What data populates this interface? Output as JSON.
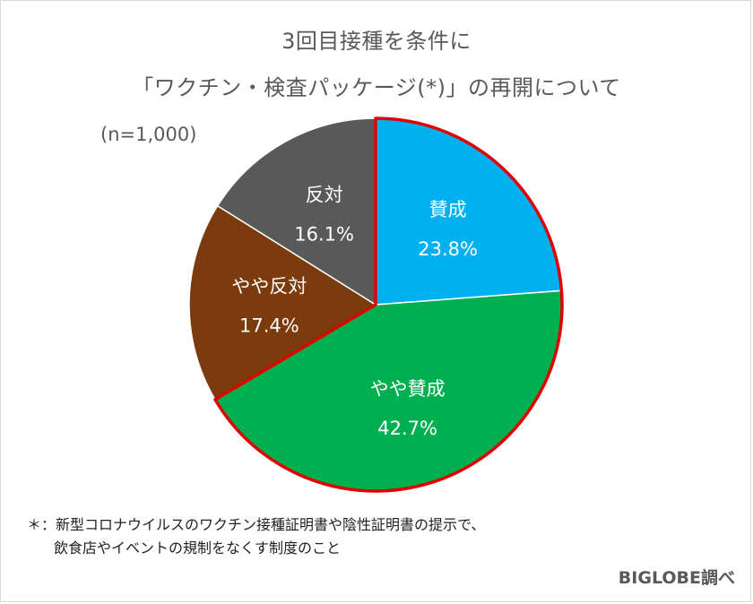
{
  "header": {
    "title_line1": "3回目接種を条件に",
    "title_line2": "「ワクチン・検査パッケージ(*)」の再開について",
    "sample_size": "(n=1,000)"
  },
  "chart_data": {
    "type": "pie",
    "title": "3回目接種を条件に「ワクチン・検査パッケージ(*)」の再開について",
    "unit": "%",
    "slices": [
      {
        "label": "賛成",
        "value": 23.8,
        "value_text": "23.8%",
        "color": "#00b0f0",
        "label_color": "#ffffff"
      },
      {
        "label": "やや賛成",
        "value": 42.7,
        "value_text": "42.7%",
        "color": "#00b050",
        "label_color": "#ffffff"
      },
      {
        "label": "やや反対",
        "value": 17.4,
        "value_text": "17.4%",
        "color": "#7b3b0c",
        "label_color": "#ffffff"
      },
      {
        "label": "反対",
        "value": 16.1,
        "value_text": "16.1%",
        "color": "#595959",
        "label_color": "#ffffff"
      }
    ],
    "start_angle_deg": 0,
    "direction": "clockwise",
    "highlighted_group": [
      "賛成",
      "やや賛成"
    ],
    "highlight_color": "#e00000",
    "slice_border_color": "#ffffff"
  },
  "footnote": {
    "line1": "＊：新型コロナウイルスのワクチン接種証明書や陰性証明書の提示で、",
    "line2": "飲食店やイベントの規制をなくす制度のこと"
  },
  "source": "BIGLOBE調べ"
}
